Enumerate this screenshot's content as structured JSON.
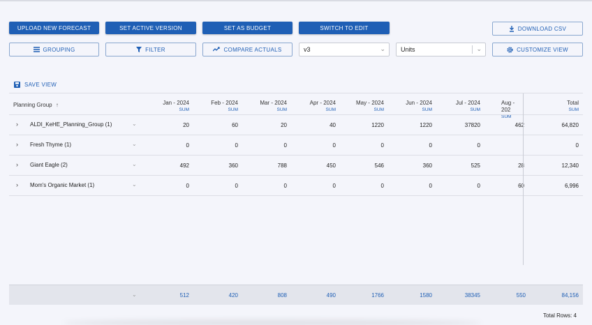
{
  "toolbar": {
    "upload": "UPLOAD NEW FORECAST",
    "set_active": "SET ACTIVE VERSION",
    "set_budget": "SET AS BUDGET",
    "switch_edit": "SWITCH TO EDIT",
    "download": "DOWNLOAD CSV",
    "grouping": "GROUPING",
    "filter": "FILTER",
    "compare": "COMPARE ACTUALS",
    "version_value": "v3",
    "measure_value": "Units",
    "customize": "CUSTOMIZE VIEW",
    "save_view": "SAVE VIEW"
  },
  "grid": {
    "group_header": "Planning Group",
    "sort_icon": "↑",
    "sum_label": "SUM",
    "columns": [
      "Jan - 2024",
      "Feb - 2024",
      "Mar - 2024",
      "Apr - 2024",
      "May - 2024",
      "Jun - 2024",
      "Jul - 2024",
      "Aug - 202",
      "Total"
    ],
    "rows": [
      {
        "name": "ALDI_KeHE_Planning_Group (1)",
        "values": [
          "20",
          "60",
          "20",
          "40",
          "1220",
          "1220",
          "37820",
          "462",
          "64,820"
        ]
      },
      {
        "name": "Fresh Thyme (1)",
        "values": [
          "0",
          "0",
          "0",
          "0",
          "0",
          "0",
          "0",
          "",
          "0"
        ]
      },
      {
        "name": "Giant Eagle (2)",
        "values": [
          "492",
          "360",
          "788",
          "450",
          "546",
          "360",
          "525",
          "28",
          "12,340"
        ]
      },
      {
        "name": "Mom's Organic Market (1)",
        "values": [
          "0",
          "0",
          "0",
          "0",
          "0",
          "0",
          "0",
          "60",
          "6,996"
        ]
      }
    ],
    "totals": [
      "512",
      "420",
      "808",
      "490",
      "1766",
      "1580",
      "38345",
      "550",
      "84,156"
    ],
    "total_rows": "Total Rows: 4"
  },
  "colors": {
    "primary": "#1f5fb5",
    "background": "#f4f5fb"
  }
}
